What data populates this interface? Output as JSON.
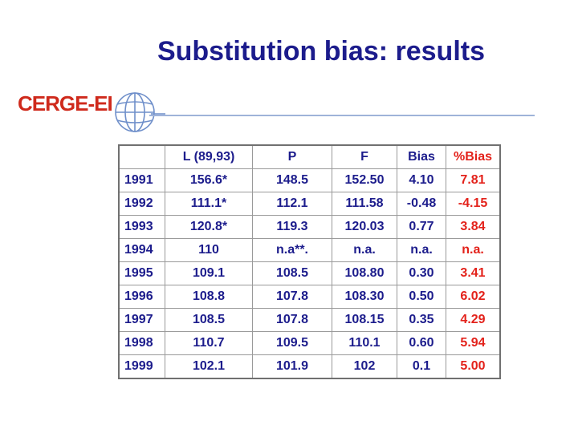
{
  "slide": {
    "title": "Substitution bias: results"
  },
  "logo": {
    "text": "CERGE-EI",
    "icon": "globe-icon",
    "text_color": "#cf2a1c",
    "globe_color": "#6f8fca"
  },
  "colors": {
    "title": "#1c1c8c",
    "text": "#1c1c8c",
    "bias_pct": "#e3221b",
    "rule": "#9fb3d9"
  },
  "table": {
    "headers": [
      "",
      "L (89,93)",
      "P",
      "F",
      "Bias",
      "%Bias"
    ],
    "rows": [
      [
        "1991",
        "156.6*",
        "148.5",
        "152.50",
        "4.10",
        "7.81"
      ],
      [
        "1992",
        "111.1*",
        "112.1",
        "111.58",
        "-0.48",
        "-4.15"
      ],
      [
        "1993",
        "120.8*",
        "119.3",
        "120.03",
        "0.77",
        "3.84"
      ],
      [
        "1994",
        "110",
        "n.a**.",
        "n.a.",
        "n.a.",
        "n.a."
      ],
      [
        "1995",
        "109.1",
        "108.5",
        "108.80",
        "0.30",
        "3.41"
      ],
      [
        "1996",
        "108.8",
        "107.8",
        "108.30",
        "0.50",
        "6.02"
      ],
      [
        "1997",
        "108.5",
        "107.8",
        "108.15",
        "0.35",
        "4.29"
      ],
      [
        "1998",
        "110.7",
        "109.5",
        "110.1",
        "0.60",
        "5.94"
      ],
      [
        "1999",
        "102.1",
        "101.9",
        "102",
        "0.1",
        "5.00"
      ]
    ]
  }
}
